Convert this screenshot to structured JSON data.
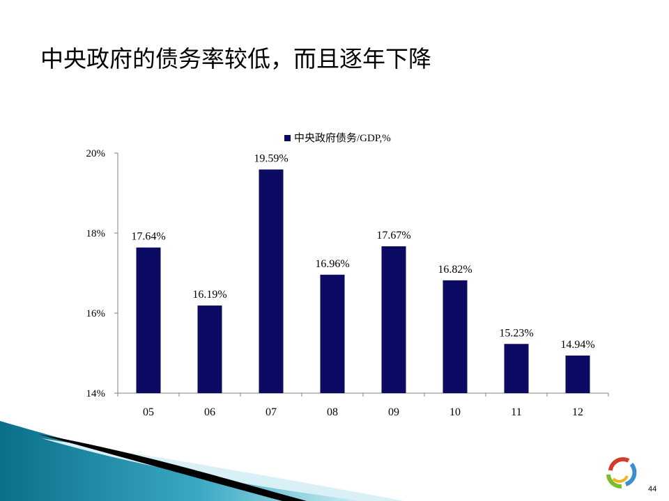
{
  "slide": {
    "title": "中央政府的债务率较低，而且逐年下降",
    "page_number": "44"
  },
  "colors": {
    "bar": "#0b0b63",
    "axis": "#808080",
    "deco_teal_dark": "#0a7e96",
    "deco_teal_light": "#8fd3e2",
    "deco_black": "#000000"
  },
  "chart_data": {
    "type": "bar",
    "categories": [
      "05",
      "06",
      "07",
      "08",
      "09",
      "10",
      "11",
      "12"
    ],
    "series": [
      {
        "name": "中央政府债务/GDP,%",
        "values": [
          17.64,
          16.19,
          19.59,
          16.96,
          17.67,
          16.82,
          15.23,
          14.94
        ],
        "labels": [
          "17.64%",
          "16.19%",
          "19.59%",
          "16.96%",
          "17.67%",
          "16.82%",
          "15.23%",
          "14.94%"
        ]
      }
    ],
    "ylim": [
      14,
      20
    ],
    "yticks": [
      14,
      16,
      18,
      20
    ],
    "ytick_labels": [
      "14%",
      "16%",
      "18%",
      "20%"
    ],
    "grid": false,
    "legend_position": "top-center"
  }
}
